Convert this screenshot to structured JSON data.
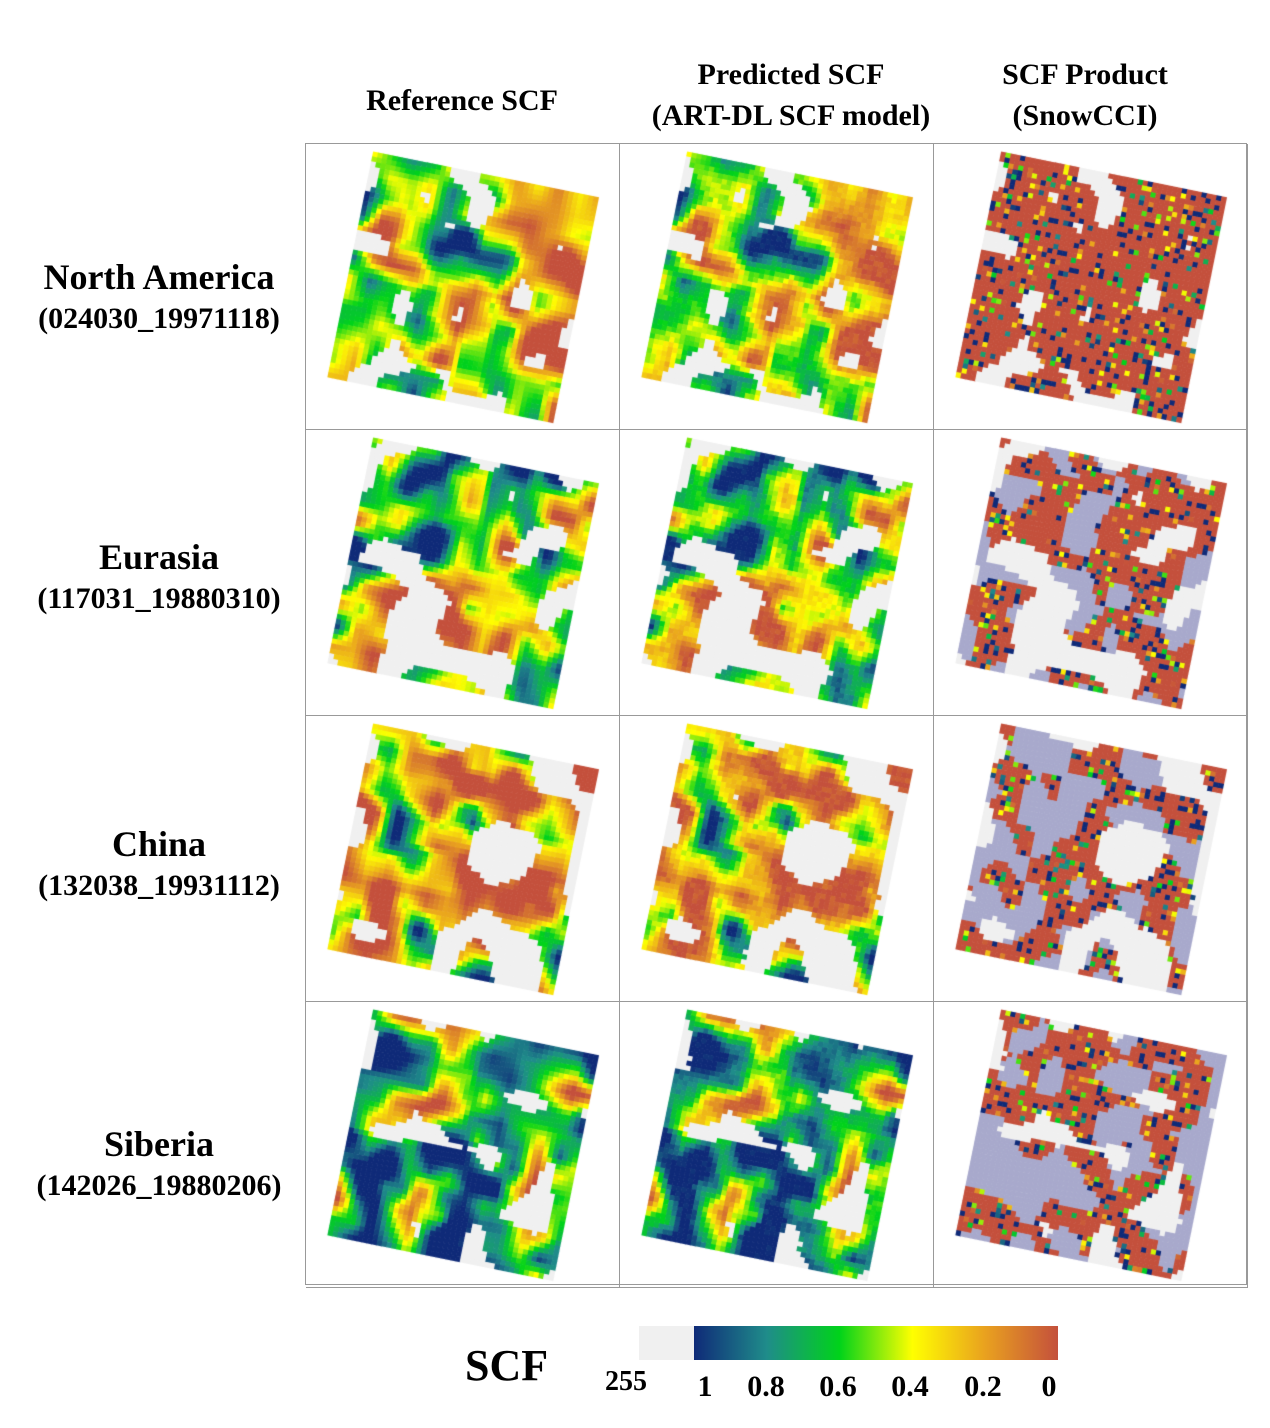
{
  "columns": [
    {
      "line1": "Reference SCF",
      "line2": ""
    },
    {
      "line1": "Predicted SCF",
      "line2": "(ART-DL SCF model)"
    },
    {
      "line1": "SCF Product",
      "line2": "(SnowCCI)"
    }
  ],
  "rows": [
    {
      "region": "North America",
      "scene": "(024030_19971118)"
    },
    {
      "region": "Eurasia",
      "scene": "(117031_19880310)"
    },
    {
      "region": "China",
      "scene": "(132038_19931112)"
    },
    {
      "region": "Siberia",
      "scene": "(142026_19880206)"
    }
  ],
  "colorbar": {
    "label": "SCF",
    "nodata_label": "255",
    "nodata_color": "#f0f0f0",
    "ticks": [
      "1",
      "0.8",
      "0.6",
      "0.4",
      "0.2",
      "0"
    ],
    "stops": [
      "#0f2a78",
      "#1f8c8a",
      "#00d31a",
      "#ffff00",
      "#e9a11f",
      "#c4503c"
    ],
    "snowcci_cloud_color": "#a8a9cc"
  }
}
